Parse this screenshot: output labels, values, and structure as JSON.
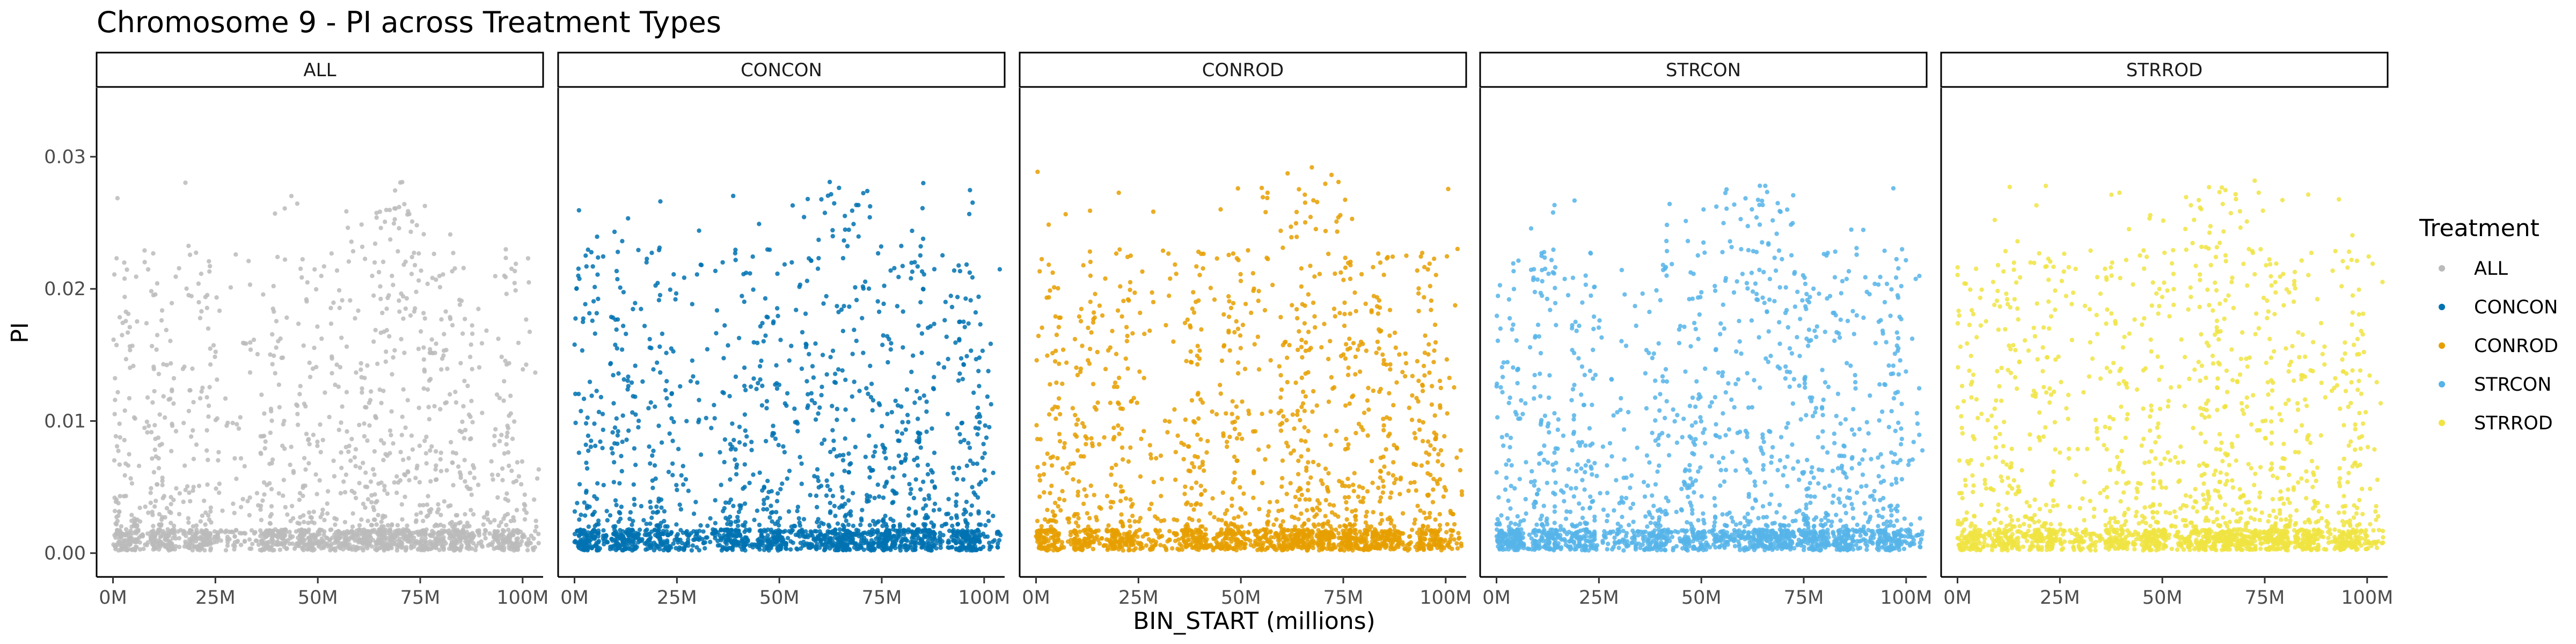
{
  "chart_data": {
    "type": "scatter",
    "title": "Chromosome 9 - PI across Treatment Types",
    "xlabel": "BIN_START (millions)",
    "ylabel": "PI",
    "xlim": [
      -4,
      105
    ],
    "ylim": [
      -0.0018,
      0.0352
    ],
    "x_ticks": [
      0,
      25,
      50,
      75,
      100
    ],
    "x_tick_labels": [
      "0M",
      "25M",
      "50M",
      "75M",
      "100M"
    ],
    "y_ticks": [
      0.0,
      0.01,
      0.02,
      0.03
    ],
    "y_tick_labels": [
      "0.00",
      "0.01",
      "0.02",
      "0.03"
    ],
    "grid": false,
    "legend": {
      "title": "Treatment",
      "placement": "right",
      "entries": [
        "ALL",
        "CONCON",
        "CONROD",
        "STRCON",
        "STRROD"
      ]
    },
    "facets": [
      "ALL",
      "CONCON",
      "CONROD",
      "STRCON",
      "STRROD"
    ],
    "colors": {
      "ALL": "#BBBBBB",
      "CONCON": "#0072B2",
      "CONROD": "#E69F00",
      "STRCON": "#56B4E9",
      "STRROD": "#F0E442"
    },
    "x_range_data": [
      0,
      104
    ],
    "density_peaks_millions": [
      3,
      12,
      21,
      39,
      48,
      60,
      66,
      70,
      78,
      85,
      96
    ],
    "max_pi": {
      "ALL": 0.0281,
      "CONCON": 0.0285,
      "CONROD": 0.0292,
      "STRCON": 0.0278,
      "STRROD": 0.0282
    },
    "series": [
      {
        "name": "ALL",
        "facet": "ALL",
        "seed": 11
      },
      {
        "name": "CONCON",
        "facet": "CONCON",
        "seed": 23
      },
      {
        "name": "CONROD",
        "facet": "CONROD",
        "seed": 37
      },
      {
        "name": "STRCON",
        "facet": "STRCON",
        "seed": 51
      },
      {
        "name": "STRROD",
        "facet": "STRROD",
        "seed": 67
      }
    ]
  }
}
